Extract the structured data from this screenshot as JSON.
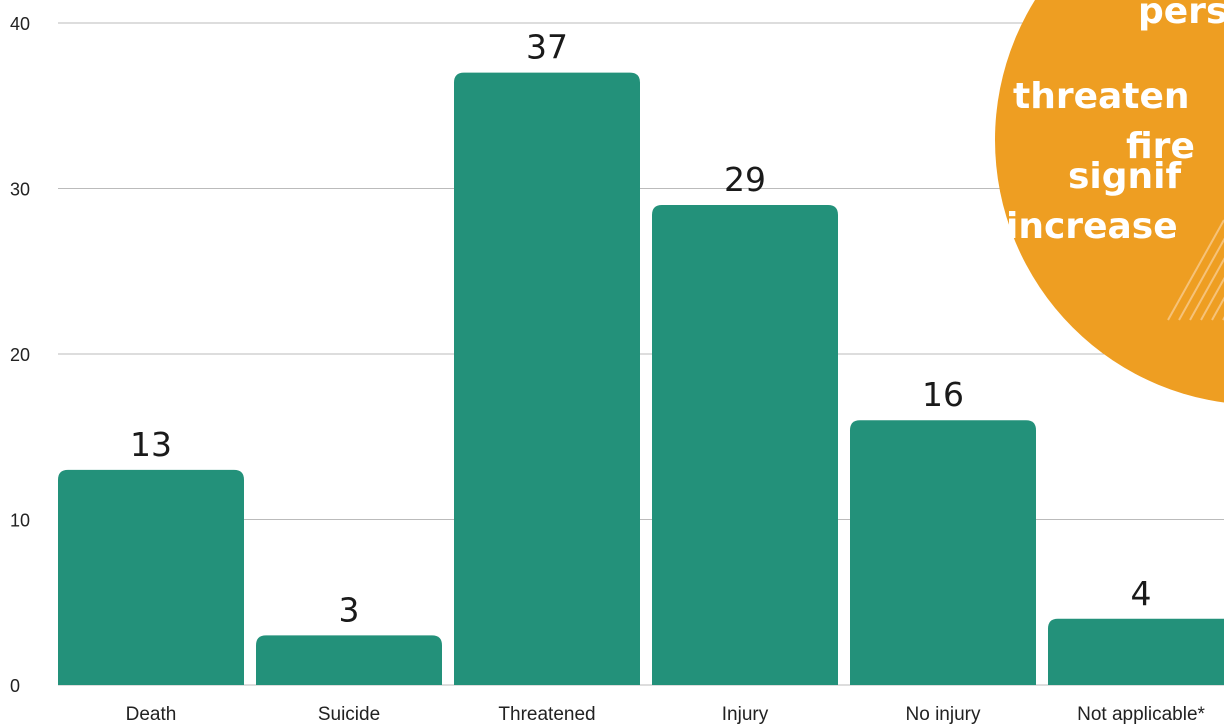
{
  "chart_data": {
    "type": "bar",
    "categories": [
      "Death",
      "Suicide",
      "Threatened",
      "Injury",
      "No injury",
      "Not applicable*"
    ],
    "values": [
      13,
      3,
      37,
      29,
      16,
      4
    ],
    "data_labels": [
      "13",
      "3",
      "37",
      "29",
      "16",
      "4"
    ],
    "ylim": [
      0,
      40
    ],
    "yticks": [
      0,
      10,
      20,
      30,
      40
    ],
    "grid": true,
    "bar_color": "#23917a",
    "gridline_color": "#bbbbbb"
  },
  "callout": {
    "color": "#ee9e22",
    "lines": [
      "pers",
      "threaten",
      "fire",
      "signif",
      "increase"
    ]
  }
}
